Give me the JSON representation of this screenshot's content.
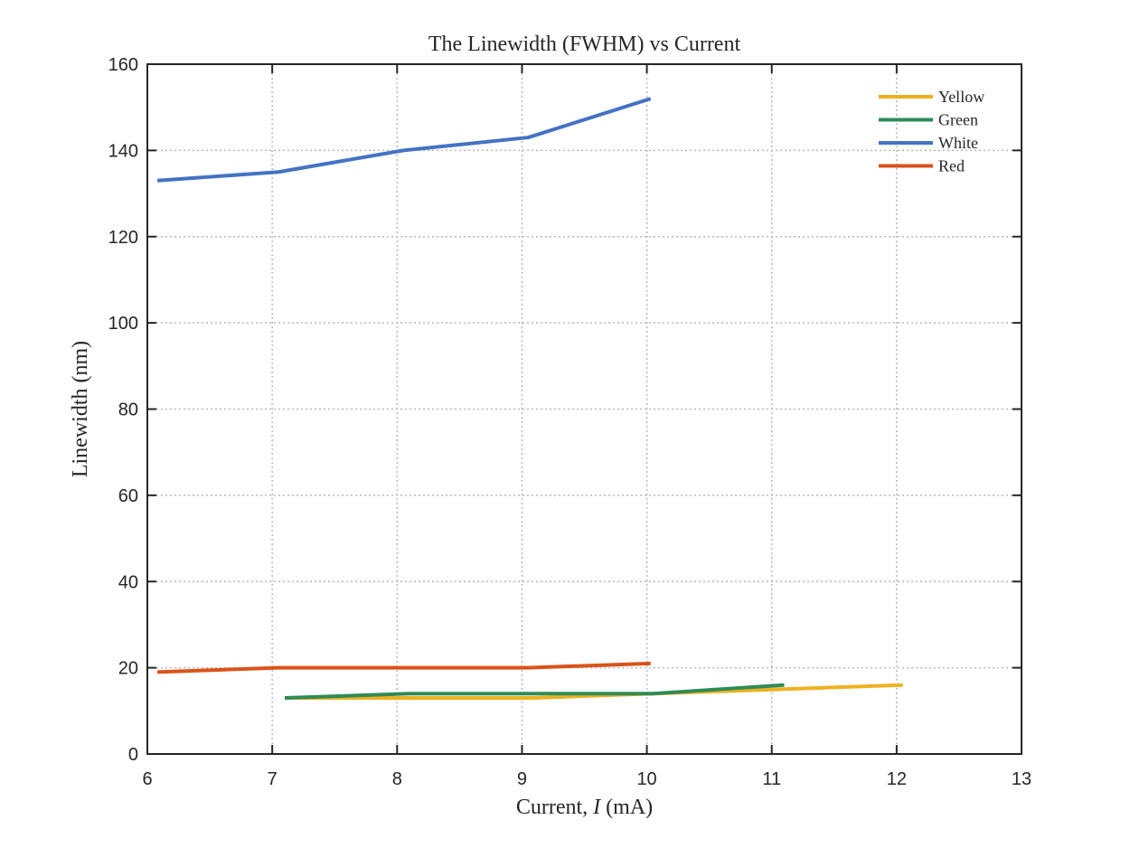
{
  "chart_data": {
    "type": "line",
    "title": "The Linewidth (FWHM) vs Current",
    "xlabel": {
      "prefix": "Current, ",
      "symbol": "I",
      "suffix": " (mA)"
    },
    "ylabel": "Linewidth (nm)",
    "xlim": [
      6,
      13
    ],
    "ylim": [
      0,
      160
    ],
    "xticks": [
      6,
      7,
      8,
      9,
      10,
      11,
      12,
      13
    ],
    "yticks": [
      0,
      20,
      40,
      60,
      80,
      100,
      120,
      140,
      160
    ],
    "xtick_labels": [
      "6",
      "7",
      "8",
      "9",
      "10",
      "11",
      "12",
      "13"
    ],
    "ytick_labels": [
      "0",
      "20",
      "40",
      "60",
      "80",
      "100",
      "120",
      "140",
      "160"
    ],
    "grid": true,
    "legend_position": "top-right",
    "series": [
      {
        "name": "Yellow",
        "color": "#EDB120",
        "x": [
          7.1,
          8.1,
          9.1,
          10.05,
          11.05,
          12.05
        ],
        "y": [
          13,
          13,
          13,
          14,
          15,
          16
        ]
      },
      {
        "name": "Green",
        "color": "#2E8B57",
        "x": [
          7.1,
          8.1,
          9.1,
          10.05,
          11.1
        ],
        "y": [
          13,
          14,
          14,
          14,
          16
        ]
      },
      {
        "name": "White",
        "color": "#4472C4",
        "x": [
          6.08,
          7.05,
          8.05,
          9.05,
          10.03
        ],
        "y": [
          133,
          135,
          140,
          143,
          152
        ]
      },
      {
        "name": "Red",
        "color": "#D95319",
        "x": [
          6.08,
          7.05,
          8.05,
          9.05,
          10.03
        ],
        "y": [
          19,
          20,
          20,
          20,
          21
        ]
      }
    ]
  }
}
